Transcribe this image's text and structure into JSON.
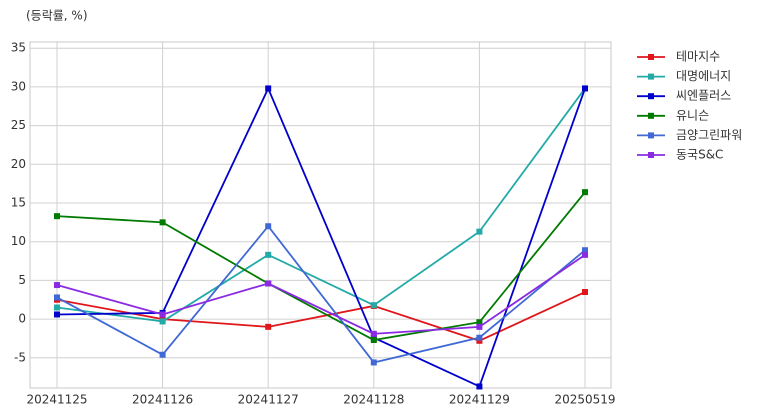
{
  "chart_data": {
    "type": "line",
    "y_label": "(등락률, %)",
    "categories": [
      "20241125",
      "20241126",
      "20241127",
      "20241128",
      "20241129",
      "20250519"
    ],
    "series": [
      {
        "name": "테마지수",
        "color": "#e0161b",
        "values": [
          2.5,
          0.0,
          -1.0,
          1.7,
          -2.8,
          3.5
        ]
      },
      {
        "name": "대명에너지",
        "color": "#22aaa8",
        "values": [
          1.5,
          -0.3,
          8.3,
          1.8,
          11.3,
          29.8
        ]
      },
      {
        "name": "씨엔플러스",
        "color": "#0000cc",
        "values": [
          0.6,
          0.8,
          29.8,
          -2.4,
          -8.7,
          29.8
        ]
      },
      {
        "name": "유니슨",
        "color": "#007a00",
        "values": [
          13.3,
          12.5,
          4.6,
          -2.7,
          -0.4,
          16.4
        ]
      },
      {
        "name": "금양그린파워",
        "color": "#4169d6",
        "values": [
          2.8,
          -4.6,
          12.0,
          -5.6,
          -2.4,
          8.9
        ]
      },
      {
        "name": "동국S&C",
        "color": "#8a2be2",
        "values": [
          4.4,
          0.6,
          4.6,
          -1.9,
          -1.0,
          8.3
        ]
      }
    ],
    "ylim": [
      -8.9,
      35.8
    ],
    "yticks": [
      -5,
      0,
      5,
      10,
      15,
      20,
      25,
      30,
      35
    ],
    "grid": true,
    "legend": "outside-right"
  }
}
